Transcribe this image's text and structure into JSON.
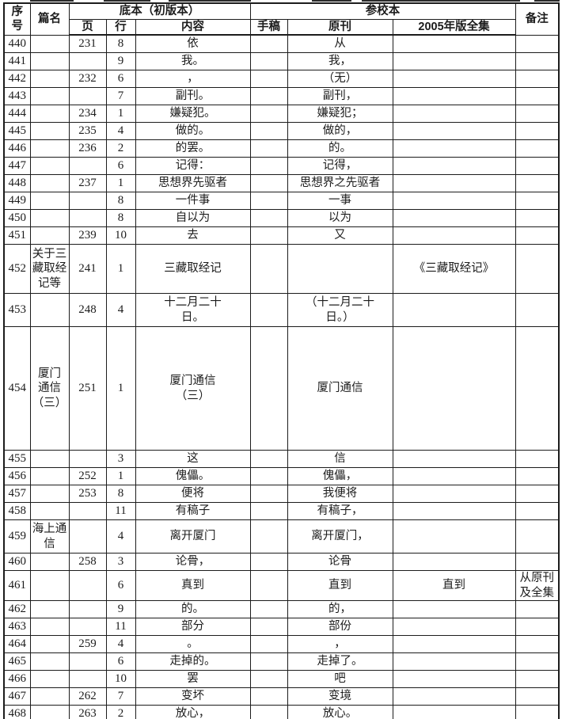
{
  "header": {
    "xuhao": "序\n号",
    "pianming": "篇名",
    "diben_group": "底本（初版本）",
    "ye": "页",
    "hang": "行",
    "neirong": "内容",
    "canjiao_group": "参校本",
    "shougao": "手稿",
    "yuankan": "原刊",
    "quanji": "2005年版全集",
    "beizhu": "备注"
  },
  "rows": [
    {
      "no": "440",
      "title": "",
      "page": "231",
      "line": "8",
      "content": "依",
      "ms": "",
      "orig": "从",
      "quanji": "",
      "note": ""
    },
    {
      "no": "441",
      "title": "",
      "page": "",
      "line": "9",
      "content": "我。",
      "ms": "",
      "orig": "我，",
      "quanji": "",
      "note": ""
    },
    {
      "no": "442",
      "title": "",
      "page": "232",
      "line": "6",
      "content": "，",
      "ms": "",
      "orig": "（无）",
      "quanji": "",
      "note": ""
    },
    {
      "no": "443",
      "title": "",
      "page": "",
      "line": "7",
      "content": "副刊。",
      "ms": "",
      "orig": "副刊，",
      "quanji": "",
      "note": ""
    },
    {
      "no": "444",
      "title": "",
      "page": "234",
      "line": "1",
      "content": "嫌疑犯。",
      "ms": "",
      "orig": "嫌疑犯；",
      "quanji": "",
      "note": ""
    },
    {
      "no": "445",
      "title": "",
      "page": "235",
      "line": "4",
      "content": "做的。",
      "ms": "",
      "orig": "做的，",
      "quanji": "",
      "note": ""
    },
    {
      "no": "446",
      "title": "",
      "page": "236",
      "line": "2",
      "content": "的罢。",
      "ms": "",
      "orig": "的。",
      "quanji": "",
      "note": ""
    },
    {
      "no": "447",
      "title": "",
      "page": "",
      "line": "6",
      "content": "记得：",
      "ms": "",
      "orig": "记得，",
      "quanji": "",
      "note": ""
    },
    {
      "no": "448",
      "title": "",
      "page": "237",
      "line": "1",
      "content": "思想界先驱者",
      "ms": "",
      "orig": "思想界之先驱者",
      "quanji": "",
      "note": ""
    },
    {
      "no": "449",
      "title": "",
      "page": "",
      "line": "8",
      "content": "一件事",
      "ms": "",
      "orig": "一事",
      "quanji": "",
      "note": ""
    },
    {
      "no": "450",
      "title": "",
      "page": "",
      "line": "8",
      "content": "自以为",
      "ms": "",
      "orig": "以为",
      "quanji": "",
      "note": ""
    },
    {
      "no": "451",
      "title": "",
      "page": "239",
      "line": "10",
      "content": "去",
      "ms": "",
      "orig": "又",
      "quanji": "",
      "note": ""
    },
    {
      "no": "452",
      "title": "关于三\n藏取经\n记等",
      "page": "241",
      "line": "1",
      "content": "三藏取经记",
      "ms": "",
      "orig": "",
      "quanji": "《三藏取经记》",
      "note": ""
    },
    {
      "no": "453",
      "title": "",
      "page": "248",
      "line": "4",
      "content": "十二月二十\n日。",
      "ms": "",
      "orig": "（十二月二十\n日。）",
      "quanji": "",
      "note": ""
    },
    {
      "no": "454",
      "title": "厦门\n通信\n（三）",
      "page": "251",
      "line": "1",
      "content": "厦门通信\n（三）",
      "ms": "",
      "orig": "厦门通信",
      "quanji": "",
      "note": ""
    },
    {
      "no": "455",
      "title": "",
      "page": "",
      "line": "3",
      "content": "这",
      "ms": "",
      "orig": "信",
      "quanji": "",
      "note": ""
    },
    {
      "no": "456",
      "title": "",
      "page": "252",
      "line": "1",
      "content": "傀儡。",
      "ms": "",
      "orig": "傀儡，",
      "quanji": "",
      "note": ""
    },
    {
      "no": "457",
      "title": "",
      "page": "253",
      "line": "8",
      "content": "便将",
      "ms": "",
      "orig": "我便将",
      "quanji": "",
      "note": ""
    },
    {
      "no": "458",
      "title": "",
      "page": "",
      "line": "11",
      "content": "有稿子",
      "ms": "",
      "orig": "有稿子，",
      "quanji": "",
      "note": ""
    },
    {
      "no": "459",
      "title": "海上通\n信",
      "page": "",
      "line": "4",
      "content": "离开厦门",
      "ms": "",
      "orig": "离开厦门，",
      "quanji": "",
      "note": ""
    },
    {
      "no": "460",
      "title": "",
      "page": "258",
      "line": "3",
      "content": "论骨，",
      "ms": "",
      "orig": "论骨",
      "quanji": "",
      "note": ""
    },
    {
      "no": "461",
      "title": "",
      "page": "",
      "line": "6",
      "content": "真到",
      "ms": "",
      "orig": "直到",
      "quanji": "直到",
      "note": "从原刊\n及全集"
    },
    {
      "no": "462",
      "title": "",
      "page": "",
      "line": "9",
      "content": "的。",
      "ms": "",
      "orig": "的，",
      "quanji": "",
      "note": ""
    },
    {
      "no": "463",
      "title": "",
      "page": "",
      "line": "11",
      "content": "部分",
      "ms": "",
      "orig": "部份",
      "quanji": "",
      "note": ""
    },
    {
      "no": "464",
      "title": "",
      "page": "259",
      "line": "4",
      "content": "。",
      "ms": "",
      "orig": "，",
      "quanji": "",
      "note": ""
    },
    {
      "no": "465",
      "title": "",
      "page": "",
      "line": "6",
      "content": "走掉的。",
      "ms": "",
      "orig": "走掉了。",
      "quanji": "",
      "note": ""
    },
    {
      "no": "466",
      "title": "",
      "page": "",
      "line": "10",
      "content": "罢",
      "ms": "",
      "orig": "吧",
      "quanji": "",
      "note": ""
    },
    {
      "no": "467",
      "title": "",
      "page": "262",
      "line": "7",
      "content": "变坏",
      "ms": "",
      "orig": "变境",
      "quanji": "",
      "note": ""
    },
    {
      "no": "468",
      "title": "",
      "page": "263",
      "line": "2",
      "content": "放心，",
      "ms": "",
      "orig": "放心。",
      "quanji": "",
      "note": ""
    }
  ]
}
